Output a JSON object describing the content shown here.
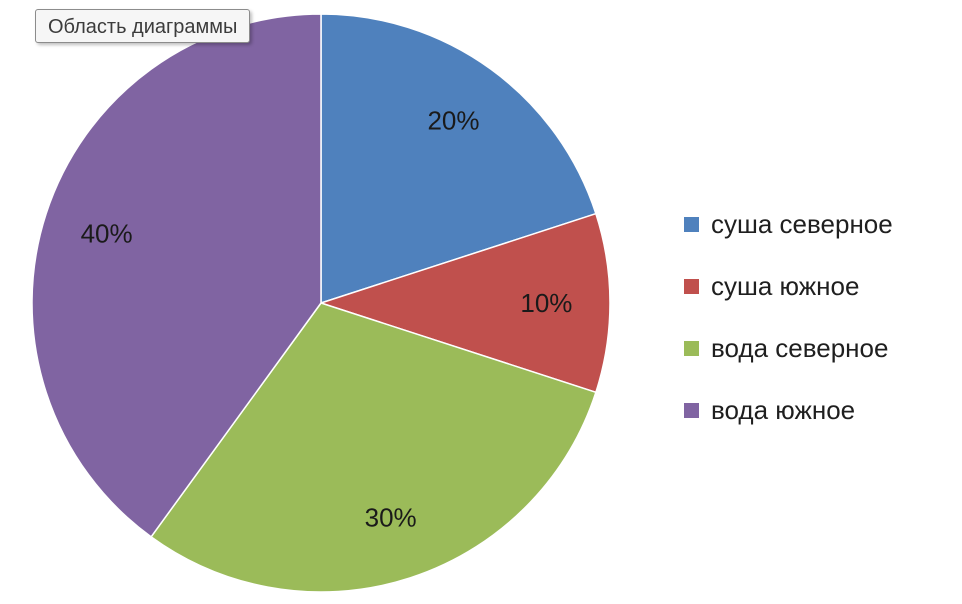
{
  "tooltip": {
    "text": "Область диаграммы"
  },
  "chart_data": {
    "type": "pie",
    "categories": [
      "суша северное",
      "суша южное",
      "вода северное",
      "вода южное"
    ],
    "values": [
      20,
      10,
      30,
      40
    ],
    "data_labels": [
      "20%",
      "10%",
      "30%",
      "40%"
    ],
    "colors": [
      "#4f81bd",
      "#c0504d",
      "#9bbb59",
      "#8064a2"
    ],
    "legend_position": "right",
    "title": ""
  }
}
